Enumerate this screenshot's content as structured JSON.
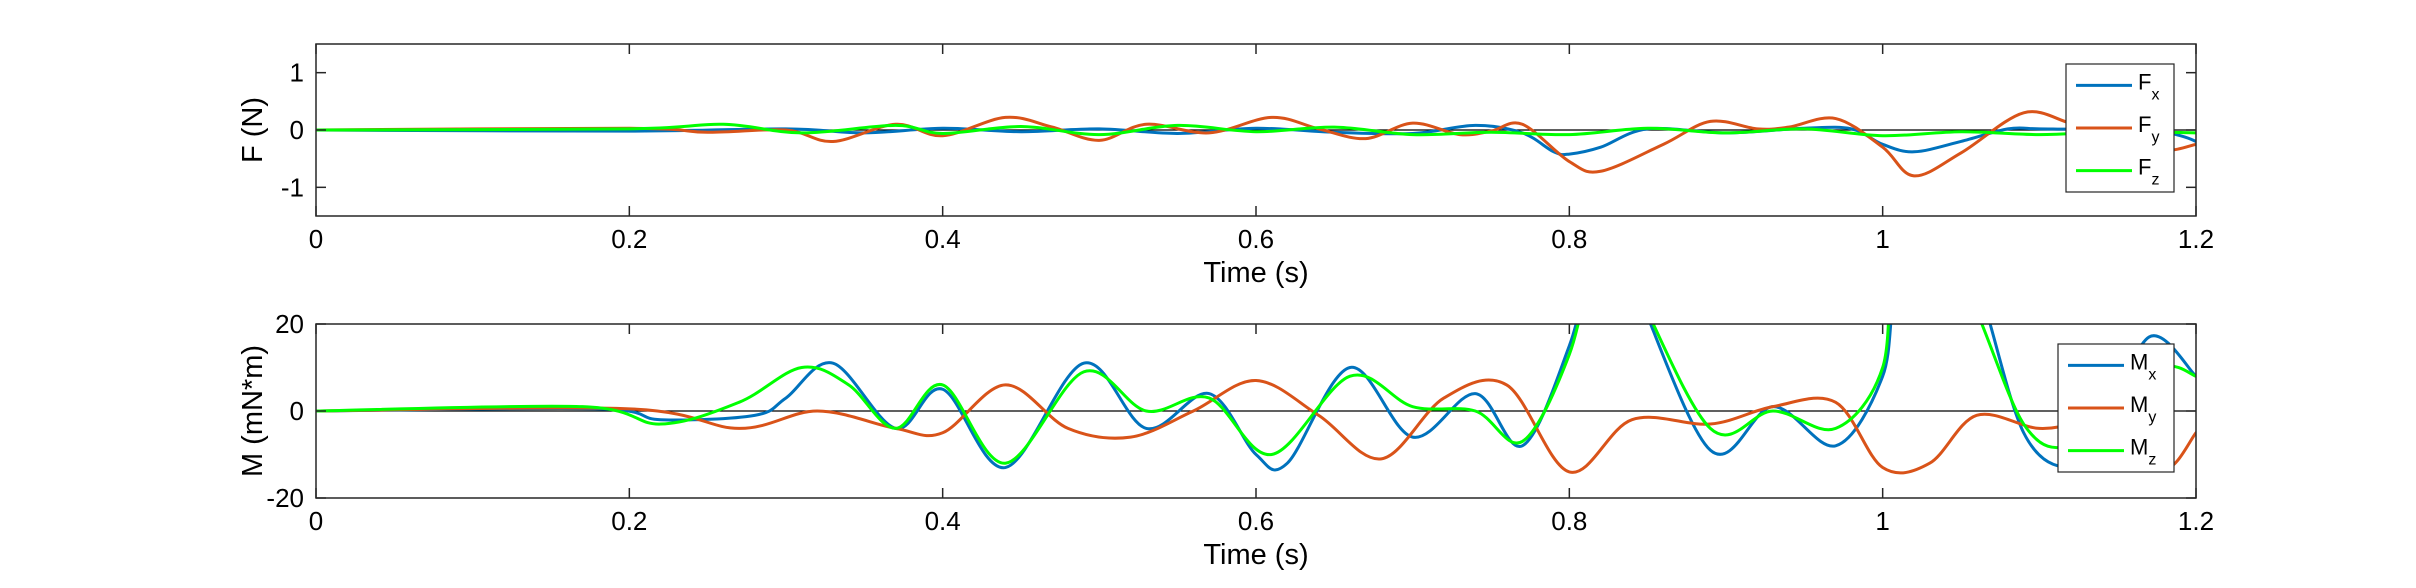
{
  "chart_data": [
    {
      "type": "line",
      "xlabel": "Time (s)",
      "ylabel": "F (N)",
      "xlim": [
        0,
        1.2
      ],
      "ylim": [
        -1.5,
        1.5
      ],
      "xticks": [
        0,
        0.2,
        0.4,
        0.6,
        0.8,
        1,
        1.2
      ],
      "xtick_labels": [
        "0",
        "0.2",
        "0.4",
        "0.6",
        "0.8",
        "1",
        "1.2"
      ],
      "yticks": [
        -1,
        0,
        1
      ],
      "ytick_labels": [
        "-1",
        "0",
        "1"
      ],
      "zero_line": true,
      "grid": false,
      "legend_position": "right",
      "series": [
        {
          "name": "F",
          "sub": "x",
          "color": "#0072BD",
          "x": [
            0,
            0.2,
            0.3,
            0.35,
            0.4,
            0.45,
            0.5,
            0.55,
            0.6,
            0.65,
            0.7,
            0.74,
            0.77,
            0.79,
            0.8,
            0.82,
            0.85,
            0.9,
            0.95,
            0.98,
            1.0,
            1.02,
            1.05,
            1.08,
            1.1,
            1.13,
            1.16,
            1.19,
            1.2
          ],
          "y": [
            0,
            -0.02,
            0.02,
            -0.05,
            0.03,
            -0.03,
            0.02,
            -0.06,
            0.03,
            -0.04,
            -0.06,
            0.08,
            -0.05,
            -0.38,
            -0.42,
            -0.3,
            0.02,
            -0.05,
            0.03,
            0.02,
            -0.25,
            -0.38,
            -0.2,
            0.02,
            0.02,
            0.02,
            0.1,
            -0.1,
            -0.2
          ]
        },
        {
          "name": "F",
          "sub": "y",
          "color": "#D95319",
          "x": [
            0,
            0.2,
            0.25,
            0.3,
            0.33,
            0.37,
            0.4,
            0.44,
            0.47,
            0.5,
            0.53,
            0.57,
            0.61,
            0.64,
            0.67,
            0.7,
            0.73,
            0.75,
            0.77,
            0.8,
            0.82,
            0.86,
            0.89,
            0.92,
            0.94,
            0.97,
            1.0,
            1.02,
            1.05,
            1.09,
            1.12,
            1.14,
            1.16,
            1.18,
            1.2
          ],
          "y": [
            0,
            0.03,
            -0.04,
            0,
            -0.2,
            0.1,
            -0.1,
            0.22,
            0.05,
            -0.18,
            0.1,
            -0.05,
            0.22,
            0.02,
            -0.15,
            0.12,
            -0.08,
            -0.02,
            0.1,
            -0.55,
            -0.72,
            -0.25,
            0.15,
            0.02,
            0.05,
            0.2,
            -0.3,
            -0.8,
            -0.4,
            0.3,
            0.12,
            0.05,
            -0.1,
            -0.35,
            -0.25
          ]
        },
        {
          "name": "F",
          "sub": "z",
          "color": "#00FF00",
          "x": [
            0,
            0.2,
            0.26,
            0.31,
            0.37,
            0.4,
            0.45,
            0.5,
            0.55,
            0.6,
            0.65,
            0.7,
            0.75,
            0.8,
            0.85,
            0.9,
            0.95,
            1.0,
            1.05,
            1.1,
            1.15,
            1.2
          ],
          "y": [
            0,
            0.02,
            0.1,
            -0.05,
            0.08,
            -0.06,
            0.06,
            -0.08,
            0.08,
            -0.03,
            0.05,
            -0.08,
            -0.04,
            -0.08,
            0.03,
            -0.05,
            0.02,
            -0.1,
            -0.03,
            -0.08,
            -0.03,
            -0.05
          ]
        }
      ]
    },
    {
      "type": "line",
      "xlabel": "Time (s)",
      "ylabel": "M (mN*m)",
      "xlim": [
        0,
        1.2
      ],
      "ylim": [
        -20,
        20
      ],
      "xticks": [
        0,
        0.2,
        0.4,
        0.6,
        0.8,
        1,
        1.2
      ],
      "xtick_labels": [
        "0",
        "0.2",
        "0.4",
        "0.6",
        "0.8",
        "1",
        "1.2"
      ],
      "yticks": [
        -20,
        0,
        20
      ],
      "ytick_labels": [
        "-20",
        "0",
        "20"
      ],
      "zero_line": true,
      "grid": false,
      "legend_position": "right",
      "series": [
        {
          "name": "M",
          "sub": "x",
          "color": "#0072BD",
          "x": [
            0,
            0.18,
            0.22,
            0.28,
            0.3,
            0.33,
            0.37,
            0.4,
            0.44,
            0.49,
            0.53,
            0.57,
            0.6,
            0.62,
            0.66,
            0.7,
            0.74,
            0.77,
            0.8,
            0.82,
            0.84,
            0.89,
            0.93,
            0.97,
            1.0,
            1.01,
            1.04,
            1.06,
            1.09,
            1.12,
            1.14,
            1.17,
            1.2
          ],
          "y": [
            0,
            0.5,
            -2,
            -1,
            3,
            11,
            -4,
            5,
            -13,
            11,
            -4,
            4,
            -10,
            -12,
            10,
            -6,
            4,
            -8,
            15,
            40,
            30,
            -9,
            1,
            -8,
            8,
            30,
            40,
            30,
            -5,
            -13,
            -5,
            17,
            8
          ]
        },
        {
          "name": "M",
          "sub": "y",
          "color": "#D95319",
          "x": [
            0,
            0.2,
            0.27,
            0.32,
            0.37,
            0.4,
            0.44,
            0.48,
            0.52,
            0.56,
            0.6,
            0.64,
            0.68,
            0.72,
            0.76,
            0.8,
            0.84,
            0.89,
            0.93,
            0.97,
            1.0,
            1.03,
            1.06,
            1.1,
            1.13,
            1.16,
            1.18,
            1.2
          ],
          "y": [
            0,
            0.5,
            -4,
            0,
            -4,
            -5,
            6,
            -4,
            -6,
            0,
            7,
            -1,
            -11,
            3,
            6,
            -14,
            -2,
            -3,
            1,
            2,
            -13,
            -12,
            -1,
            -4,
            -2,
            2,
            -13,
            -5
          ]
        },
        {
          "name": "M",
          "sub": "z",
          "color": "#00FF00",
          "x": [
            0,
            0.17,
            0.22,
            0.27,
            0.31,
            0.34,
            0.37,
            0.4,
            0.44,
            0.49,
            0.53,
            0.57,
            0.61,
            0.66,
            0.7,
            0.74,
            0.77,
            0.8,
            0.82,
            0.84,
            0.89,
            0.93,
            0.97,
            1.0,
            1.01,
            1.05,
            1.09,
            1.12,
            1.15,
            1.18,
            1.2
          ],
          "y": [
            0,
            1,
            -3,
            2,
            10,
            6,
            -4,
            6,
            -12,
            9,
            0,
            3,
            -10,
            8,
            1,
            0,
            -7,
            13,
            40,
            30,
            -4,
            0,
            -4,
            10,
            40,
            30,
            -3,
            -8,
            1,
            10,
            8
          ]
        }
      ]
    }
  ]
}
